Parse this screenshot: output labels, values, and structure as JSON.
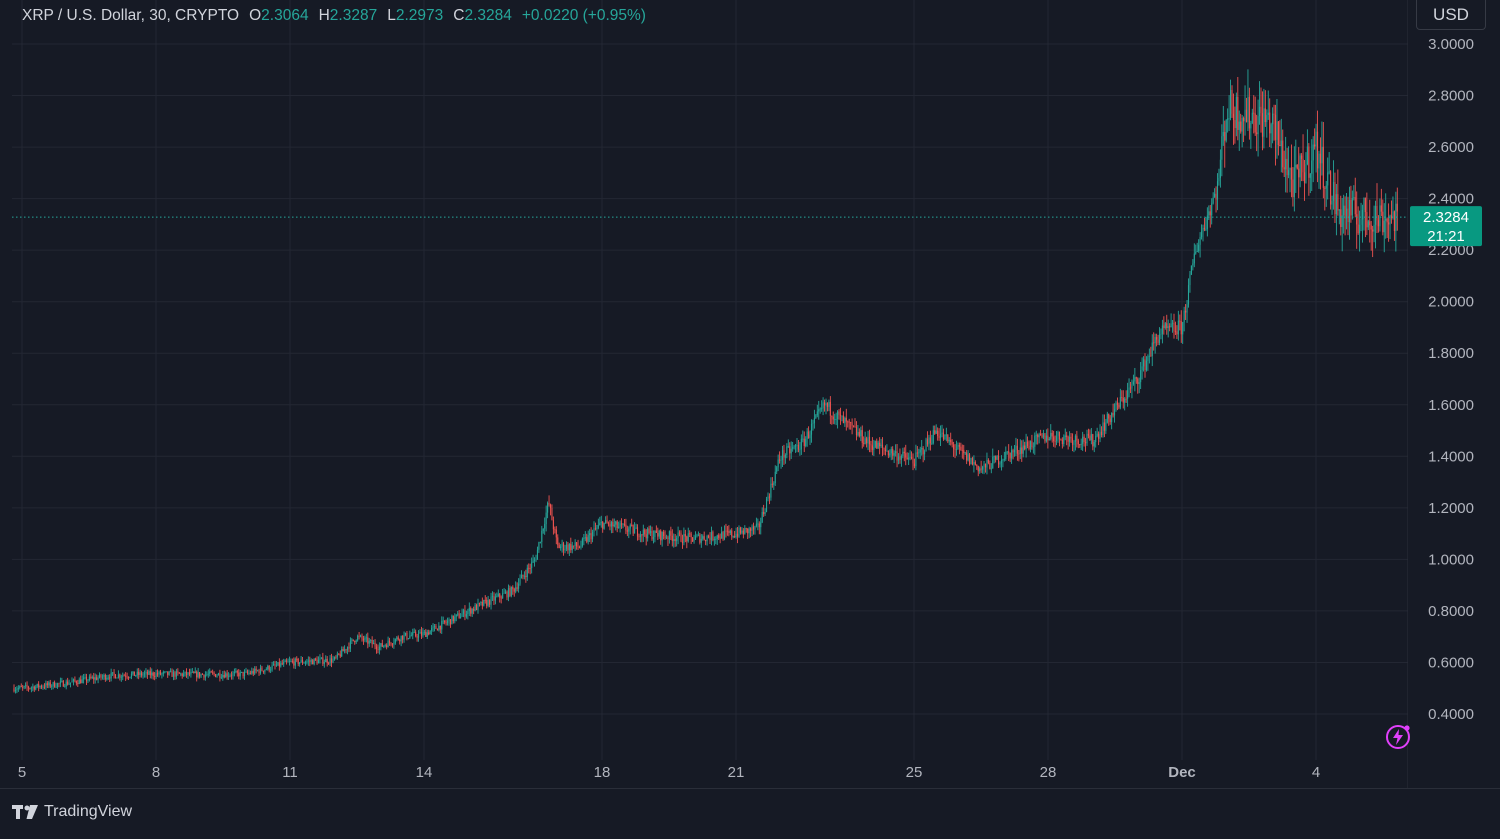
{
  "header": {
    "symbol": "XRP / U.S. Dollar, 30, CRYPTO",
    "open_key": "O",
    "open_val": "2.3064",
    "high_key": "H",
    "high_val": "2.3287",
    "low_key": "L",
    "low_val": "2.2973",
    "close_key": "C",
    "close_val": "2.3284",
    "change": "+0.0220 (+0.95%)"
  },
  "currency_button": "USD",
  "price_tag": {
    "price": "2.3284",
    "countdown": "21:21"
  },
  "brand": "TradingView",
  "colors": {
    "background": "#161a25",
    "grid": "#232733",
    "up": "#26a69a",
    "down": "#ef5350",
    "text": "#d1d4dc",
    "axis_text": "#b2b5be",
    "price_tag_bg": "#089981",
    "accent_bolt": "#e040fb"
  },
  "chart_data": {
    "type": "candlestick",
    "title": "XRP / U.S. Dollar, 30, CRYPTO",
    "y_axis": {
      "ticks": [
        "3.0000",
        "2.8000",
        "2.6000",
        "2.4000",
        "2.2000",
        "2.0000",
        "1.8000",
        "1.6000",
        "1.4000",
        "1.2000",
        "1.0000",
        "0.8000",
        "0.6000",
        "0.4000"
      ],
      "range": [
        0.27,
        3.1
      ]
    },
    "x_axis": {
      "ticks": [
        "5",
        "8",
        "11",
        "14",
        "18",
        "21",
        "25",
        "28",
        "Dec",
        "4"
      ],
      "bold_ticks": [
        "Dec"
      ]
    },
    "current_price": 2.3284,
    "price_path": [
      [
        "5",
        0.5
      ],
      [
        "6",
        0.52
      ],
      [
        "7",
        0.55
      ],
      [
        "8",
        0.555
      ],
      [
        "9",
        0.553
      ],
      [
        "10",
        0.555
      ],
      [
        "11",
        0.6
      ],
      [
        "12",
        0.61
      ],
      [
        "12.5",
        0.7
      ],
      [
        "13",
        0.66
      ],
      [
        "13.5",
        0.7
      ],
      [
        "14",
        0.71
      ],
      [
        "15",
        0.8
      ],
      [
        "16",
        0.88
      ],
      [
        "16.5",
        1.0
      ],
      [
        "16.8",
        1.22
      ],
      [
        "17",
        1.05
      ],
      [
        "17.5",
        1.05
      ],
      [
        "18",
        1.14
      ],
      [
        "19",
        1.1
      ],
      [
        "20",
        1.08
      ],
      [
        "21",
        1.1
      ],
      [
        "21.5",
        1.12
      ],
      [
        "22",
        1.4
      ],
      [
        "22.5",
        1.45
      ],
      [
        "23",
        1.6
      ],
      [
        "23.5",
        1.52
      ],
      [
        "24",
        1.45
      ],
      [
        "25",
        1.38
      ],
      [
        "25.5",
        1.5
      ],
      [
        "26",
        1.42
      ],
      [
        "26.5",
        1.35
      ],
      [
        "27",
        1.4
      ],
      [
        "28",
        1.48
      ],
      [
        "29",
        1.46
      ],
      [
        "30",
        1.7
      ],
      [
        "30.5",
        1.88
      ],
      [
        "Dec1",
        1.9
      ],
      [
        "Dec1.3",
        2.2
      ],
      [
        "Dec1.8",
        2.45
      ],
      [
        "Dec2",
        2.75
      ],
      [
        "Dec3",
        2.7
      ],
      [
        "Dec3.5",
        2.45
      ],
      [
        "Dec4",
        2.6
      ],
      [
        "Dec4.5",
        2.35
      ],
      [
        "Dec5",
        2.33
      ]
    ]
  }
}
